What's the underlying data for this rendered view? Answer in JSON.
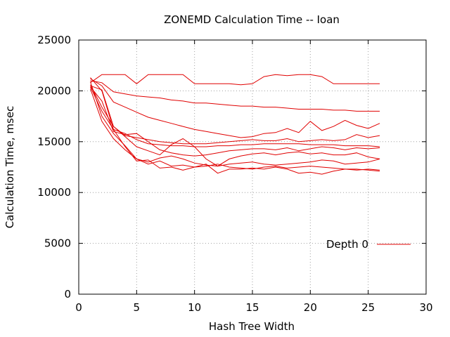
{
  "chart_data": {
    "type": "line",
    "title": "ZONEMD Calculation Time -- Ioan",
    "xlabel": "Hash Tree Width",
    "ylabel": "Calculation Time, msec",
    "xlim": [
      0,
      30
    ],
    "ylim": [
      0,
      25000
    ],
    "x_ticks": [
      0,
      5,
      10,
      15,
      20,
      25,
      30
    ],
    "y_ticks": [
      0,
      5000,
      10000,
      15000,
      20000,
      25000
    ],
    "grid": true,
    "legend_position": "right",
    "legend_label": "Depth 0",
    "color": "#e00000",
    "series": [
      {
        "x": [
          1,
          2,
          3,
          4,
          5,
          6,
          7,
          8,
          9,
          10,
          11,
          12,
          13,
          14,
          15,
          16,
          17,
          18,
          19,
          20,
          21,
          22,
          23,
          24,
          25,
          26
        ],
        "values": [
          20800,
          21600,
          21600,
          21600,
          20700,
          21600,
          21600,
          21600,
          21600,
          20700,
          20700,
          20700,
          20700,
          20600,
          20700,
          21400,
          21600,
          21500,
          21600,
          21600,
          21400,
          20700,
          20700,
          20700,
          20700,
          20700
        ]
      },
      {
        "x": [
          1,
          2,
          3,
          4,
          5,
          6,
          7,
          8,
          9,
          10,
          11,
          12,
          13,
          14,
          15,
          16,
          17,
          18,
          19,
          20,
          21,
          22,
          23,
          24,
          25,
          26
        ],
        "values": [
          21000,
          20800,
          19900,
          19700,
          19500,
          19400,
          19300,
          19100,
          19000,
          18800,
          18800,
          18700,
          18600,
          18500,
          18500,
          18400,
          18400,
          18300,
          18200,
          18200,
          18200,
          18100,
          18100,
          18000,
          18000,
          18000
        ]
      },
      {
        "x": [
          1,
          2,
          3,
          4,
          5,
          6,
          7,
          8,
          9,
          10,
          11,
          12,
          13,
          14,
          15,
          16,
          17,
          18,
          19,
          20,
          21,
          22,
          23,
          24,
          25,
          26
        ],
        "values": [
          21200,
          20500,
          18900,
          18400,
          17900,
          17400,
          17100,
          16800,
          16500,
          16200,
          16000,
          15800,
          15600,
          15400,
          15500,
          15800,
          15900,
          16300,
          15900,
          17000,
          16100,
          16500,
          17100,
          16600,
          16300,
          16800
        ]
      },
      {
        "x": [
          1,
          2,
          3,
          4,
          5,
          6,
          7,
          8,
          9,
          10,
          11,
          12,
          13,
          14,
          15,
          16,
          17,
          18,
          19,
          20,
          21,
          22,
          23,
          24,
          25,
          26
        ],
        "values": [
          20500,
          20100,
          16500,
          15600,
          15400,
          15200,
          15000,
          14900,
          14800,
          14800,
          14800,
          14900,
          15000,
          15100,
          15200,
          15100,
          15100,
          15300,
          15000,
          15100,
          15200,
          15100,
          15200,
          15700,
          15400,
          15600
        ]
      },
      {
        "x": [
          1,
          2,
          3,
          4,
          5,
          6,
          7,
          8,
          9,
          10,
          11,
          12,
          13,
          14,
          15,
          16,
          17,
          18,
          19,
          20,
          21,
          22,
          23,
          24,
          25,
          26
        ],
        "values": [
          21300,
          20000,
          16200,
          15800,
          15200,
          14800,
          14700,
          14600,
          14600,
          14500,
          14500,
          14600,
          14600,
          14700,
          14700,
          14800,
          14800,
          14800,
          14800,
          14700,
          14700,
          14700,
          14600,
          14600,
          14600,
          14500
        ]
      },
      {
        "x": [
          1,
          2,
          3,
          4,
          5,
          6,
          7,
          8,
          9,
          10,
          11,
          12,
          13,
          14,
          15,
          16,
          17,
          18,
          19,
          20,
          21,
          22,
          23,
          24,
          25,
          26
        ],
        "values": [
          20400,
          19000,
          16000,
          15700,
          15800,
          15000,
          14200,
          13900,
          13700,
          13600,
          13700,
          13900,
          14100,
          14200,
          14300,
          14300,
          14200,
          14400,
          14100,
          14300,
          14500,
          14400,
          14200,
          14400,
          14300,
          14400
        ]
      },
      {
        "x": [
          1,
          2,
          3,
          4,
          5,
          6,
          7,
          8,
          9,
          10,
          11,
          12,
          13,
          14,
          15,
          16,
          17,
          18,
          19,
          20,
          21,
          22,
          23,
          24,
          25,
          26
        ],
        "values": [
          20600,
          18400,
          16500,
          15500,
          14500,
          14100,
          13700,
          14700,
          15300,
          14500,
          13300,
          12600,
          13300,
          13600,
          13800,
          13900,
          13700,
          13900,
          14000,
          13800,
          13900,
          13700,
          13700,
          13900,
          13500,
          13300
        ]
      },
      {
        "x": [
          1,
          2,
          3,
          4,
          5,
          6,
          7,
          8,
          9,
          10,
          11,
          12,
          13,
          14,
          15,
          16,
          17,
          18,
          19,
          20,
          21,
          22,
          23,
          24,
          25,
          26
        ],
        "values": [
          20900,
          17500,
          15800,
          14600,
          13300,
          13000,
          13400,
          13600,
          13300,
          12900,
          12700,
          12600,
          12800,
          12900,
          13000,
          12800,
          12700,
          12800,
          12900,
          13000,
          13200,
          13100,
          12800,
          12900,
          13000,
          13300
        ]
      },
      {
        "x": [
          1,
          2,
          3,
          4,
          5,
          6,
          7,
          8,
          9,
          10,
          11,
          12,
          13,
          14,
          15,
          16,
          17,
          18,
          19,
          20,
          21,
          22,
          23,
          24,
          25,
          26
        ],
        "values": [
          20200,
          17000,
          15300,
          14200,
          13300,
          12800,
          13100,
          12600,
          12700,
          12500,
          12600,
          12800,
          12500,
          12400,
          12300,
          12500,
          12600,
          12400,
          12500,
          12600,
          12500,
          12400,
          12300,
          12200,
          12300,
          12200
        ]
      },
      {
        "x": [
          1,
          2,
          3,
          4,
          5,
          6,
          7,
          8,
          9,
          10,
          11,
          12,
          13,
          14,
          15,
          16,
          17,
          18,
          19,
          20,
          21,
          22,
          23,
          24,
          25,
          26
        ],
        "values": [
          20400,
          18000,
          16200,
          14500,
          13100,
          13200,
          12400,
          12500,
          12200,
          12500,
          12800,
          11900,
          12300,
          12300,
          12400,
          12300,
          12500,
          12300,
          11900,
          12000,
          11800,
          12100,
          12300,
          12300,
          12200,
          12100
        ]
      }
    ]
  }
}
